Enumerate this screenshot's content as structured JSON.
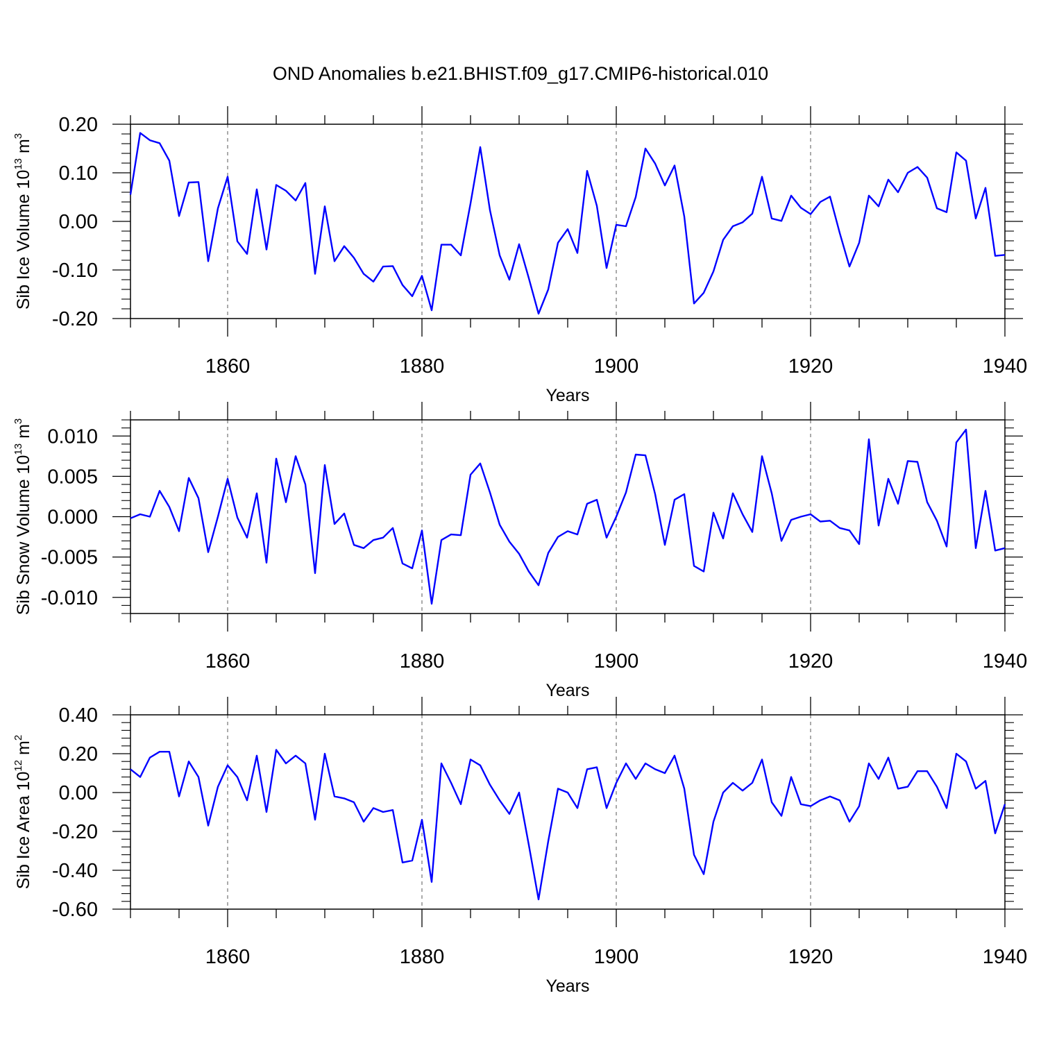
{
  "title": "OND Anomalies b.e21.BHIST.f09_g17.CMIP6-historical.010",
  "line_color": "#0000ff",
  "chart_data": [
    {
      "type": "line",
      "ylabel_main": "Sib Ice Volume 10",
      "ylabel_exp": "13",
      "ylabel_unit": " m",
      "ylabel_unit_exp": "3",
      "xlabel": "Years",
      "xlim": [
        1850,
        1940
      ],
      "ylim": [
        -0.2,
        0.2
      ],
      "xticks": [
        1860,
        1880,
        1900,
        1920,
        1940
      ],
      "xtick_labels": [
        "1860",
        "1880",
        "1900",
        "1920",
        "1940"
      ],
      "yticks": [
        -0.2,
        -0.1,
        0.0,
        0.1,
        0.2
      ],
      "ytick_labels": [
        "-0.20",
        "-0.10",
        "0.00",
        "0.10",
        "0.20"
      ],
      "series": [
        {
          "name": "Sib Ice Volume",
          "x_start": 1850,
          "x_step": 1,
          "values": [
            0.055,
            0.182,
            0.167,
            0.161,
            0.125,
            0.011,
            0.08,
            0.081,
            -0.082,
            0.027,
            0.092,
            -0.041,
            -0.067,
            0.066,
            -0.058,
            0.075,
            0.063,
            0.043,
            0.079,
            -0.108,
            0.031,
            -0.082,
            -0.051,
            -0.075,
            -0.108,
            -0.124,
            -0.093,
            -0.092,
            -0.131,
            -0.154,
            -0.112,
            -0.183,
            -0.048,
            -0.048,
            -0.07,
            0.037,
            0.153,
            0.023,
            -0.07,
            -0.12,
            -0.047,
            -0.117,
            -0.19,
            -0.14,
            -0.044,
            -0.016,
            -0.065,
            0.104,
            0.032,
            -0.096,
            -0.007,
            -0.01,
            0.05,
            0.15,
            0.119,
            0.074,
            0.115,
            0.01,
            -0.169,
            -0.147,
            -0.103,
            -0.038,
            -0.01,
            -0.002,
            0.016,
            0.092,
            0.006,
            0.001,
            0.053,
            0.028,
            0.015,
            0.04,
            0.051,
            -0.024,
            -0.093,
            -0.044,
            0.053,
            0.031,
            0.086,
            0.06,
            0.1,
            0.112,
            0.09,
            0.027,
            0.019,
            0.142,
            0.125,
            0.006,
            0.069,
            -0.071,
            -0.069
          ]
        }
      ]
    },
    {
      "type": "line",
      "ylabel_main": "Sib Snow Volume 10",
      "ylabel_exp": "13",
      "ylabel_unit": " m",
      "ylabel_unit_exp": "3",
      "xlabel": "Years",
      "xlim": [
        1850,
        1940
      ],
      "ylim": [
        -0.012,
        0.012
      ],
      "xticks": [
        1860,
        1880,
        1900,
        1920,
        1940
      ],
      "xtick_labels": [
        "1860",
        "1880",
        "1900",
        "1920",
        "1940"
      ],
      "yticks": [
        -0.01,
        -0.005,
        0.0,
        0.005,
        0.01
      ],
      "ytick_labels": [
        "-0.010",
        "-0.005",
        "0.000",
        "0.005",
        "0.010"
      ],
      "series": [
        {
          "name": "Sib Snow Volume",
          "x_start": 1850,
          "x_step": 1,
          "values": [
            -0.0002,
            0.0003,
            0.0,
            0.0032,
            0.0012,
            -0.0018,
            0.0048,
            0.0023,
            -0.0044,
            0.0,
            0.0047,
            -0.0001,
            -0.0026,
            0.0029,
            -0.0057,
            0.0072,
            0.0018,
            0.0075,
            0.004,
            -0.007,
            0.0064,
            -0.0009,
            0.0004,
            -0.0035,
            -0.0039,
            -0.0029,
            -0.0026,
            -0.0014,
            -0.0058,
            -0.0064,
            -0.0017,
            -0.0108,
            -0.0029,
            -0.0022,
            -0.0023,
            0.0052,
            0.0066,
            0.003,
            -0.001,
            -0.0031,
            -0.0046,
            -0.0068,
            -0.0085,
            -0.0045,
            -0.0025,
            -0.0018,
            -0.0022,
            0.0016,
            0.0021,
            -0.0026,
            0.0,
            0.003,
            0.0077,
            0.0076,
            0.0028,
            -0.0035,
            0.0021,
            0.0028,
            -0.0061,
            -0.0068,
            0.0005,
            -0.0027,
            0.0029,
            0.0003,
            -0.0019,
            0.0075,
            0.0029,
            -0.003,
            -0.0004,
            0.0,
            0.0003,
            -0.0006,
            -0.0005,
            -0.0014,
            -0.0017,
            -0.0034,
            0.0096,
            -0.0011,
            0.0047,
            0.0016,
            0.0069,
            0.0068,
            0.0018,
            -0.0005,
            -0.0037,
            0.0092,
            0.0108,
            -0.0039,
            0.0032,
            -0.0042,
            -0.0039
          ]
        }
      ]
    },
    {
      "type": "line",
      "ylabel_main": "Sib Ice Area 10",
      "ylabel_exp": "12",
      "ylabel_unit": " m",
      "ylabel_unit_exp": "2",
      "xlabel": "Years",
      "xlim": [
        1850,
        1940
      ],
      "ylim": [
        -0.6,
        0.4
      ],
      "xticks": [
        1860,
        1880,
        1900,
        1920,
        1940
      ],
      "xtick_labels": [
        "1860",
        "1880",
        "1900",
        "1920",
        "1940"
      ],
      "yticks": [
        -0.6,
        -0.4,
        -0.2,
        0.0,
        0.2,
        0.4
      ],
      "ytick_labels": [
        "-0.60",
        "-0.40",
        "-0.20",
        "0.00",
        "0.20",
        "0.40"
      ],
      "series": [
        {
          "name": "Sib Ice Area",
          "x_start": 1850,
          "x_step": 1,
          "values": [
            0.12,
            0.08,
            0.18,
            0.21,
            0.21,
            -0.02,
            0.16,
            0.08,
            -0.17,
            0.03,
            0.14,
            0.08,
            -0.04,
            0.19,
            -0.1,
            0.22,
            0.15,
            0.19,
            0.15,
            -0.14,
            0.2,
            -0.02,
            -0.03,
            -0.05,
            -0.15,
            -0.08,
            -0.1,
            -0.09,
            -0.36,
            -0.35,
            -0.14,
            -0.46,
            0.15,
            0.05,
            -0.06,
            0.17,
            0.14,
            0.04,
            -0.04,
            -0.11,
            0.0,
            -0.27,
            -0.55,
            -0.25,
            0.02,
            0.0,
            -0.08,
            0.12,
            0.13,
            -0.08,
            0.05,
            0.15,
            0.07,
            0.15,
            0.12,
            0.1,
            0.19,
            0.02,
            -0.32,
            -0.42,
            -0.15,
            0.0,
            0.05,
            0.01,
            0.05,
            0.17,
            -0.05,
            -0.12,
            0.08,
            -0.06,
            -0.07,
            -0.04,
            -0.02,
            -0.04,
            -0.15,
            -0.07,
            0.15,
            0.07,
            0.18,
            0.02,
            0.03,
            0.11,
            0.11,
            0.03,
            -0.08,
            0.2,
            0.16,
            0.02,
            0.06,
            -0.21,
            -0.06
          ]
        }
      ]
    }
  ]
}
